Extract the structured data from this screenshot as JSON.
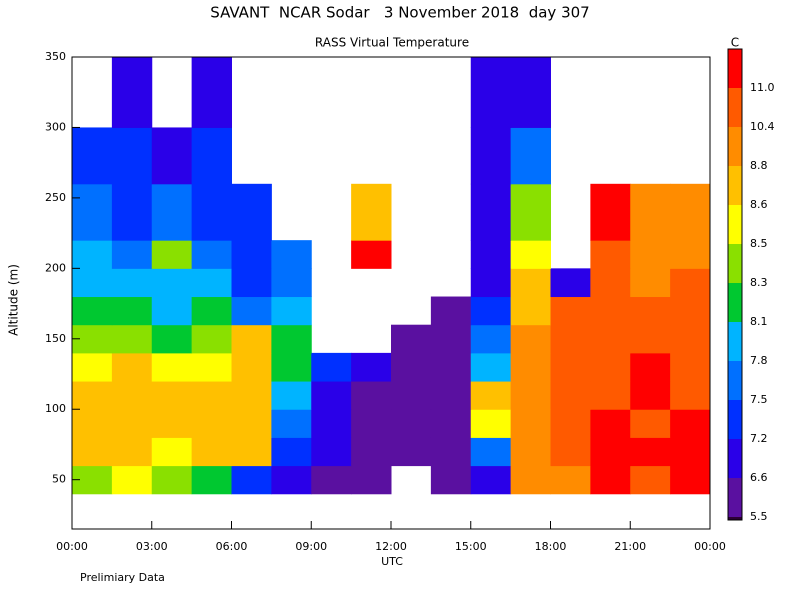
{
  "chart_data": {
    "type": "heatmap",
    "title": "SAVANT  NCAR Sodar   3 November 2018  day 307",
    "subtitle": "RASS Virtual Temperature",
    "xlabel": "UTC",
    "ylabel": "Altitude (m)",
    "note": "Prelimiary Data",
    "colorbar_label": "C",
    "xlim": [
      0,
      24
    ],
    "xticks": [
      {
        "value": 0,
        "label": "00:00"
      },
      {
        "value": 3,
        "label": "03:00"
      },
      {
        "value": 6,
        "label": "06:00"
      },
      {
        "value": 9,
        "label": "09:00"
      },
      {
        "value": 12,
        "label": "12:00"
      },
      {
        "value": 15,
        "label": "15:00"
      },
      {
        "value": 18,
        "label": "18:00"
      },
      {
        "value": 21,
        "label": "21:00"
      },
      {
        "value": 24,
        "label": "00:00"
      }
    ],
    "ylim": [
      15,
      350
    ],
    "yticks": [
      50,
      100,
      150,
      200,
      250,
      300,
      350
    ],
    "x_edges": [
      0,
      1.5,
      3,
      4.5,
      6,
      7.5,
      9,
      10.5,
      12,
      13.5,
      15,
      16.5,
      18,
      19.5,
      21,
      22.5,
      24
    ],
    "y_edges": [
      40,
      60,
      80,
      100,
      120,
      140,
      160,
      180,
      200,
      220,
      260,
      300,
      350
    ],
    "levels": [
      5.5,
      6.6,
      7.2,
      7.5,
      7.8,
      8.1,
      8.3,
      8.5,
      8.6,
      8.8,
      10.4,
      {
        "value": 11,
        "label": "11.0"
      }
    ],
    "colors": [
      "#2d0036",
      "#5a10a0",
      "#2a00e8",
      "#0030ff",
      "#0070ff",
      "#00b4ff",
      "#00c830",
      "#8ae000",
      "#ffff00",
      "#ffc000",
      "#ff8c00",
      "#ff5a00",
      "#ff0000"
    ],
    "values": [
      [
        8.3,
        8.5,
        8.3,
        8.1,
        7.2,
        6.6,
        6.0,
        6.0,
        null,
        6.0,
        7.0,
        8.9,
        9.0,
        11.2,
        10.8,
        11.2
      ],
      [
        8.6,
        8.7,
        8.5,
        8.6,
        8.6,
        7.3,
        6.8,
        6.0,
        6.0,
        6.0,
        7.5,
        8.9,
        10.5,
        11.2,
        11.2,
        11.3
      ],
      [
        8.7,
        8.7,
        8.6,
        8.6,
        8.7,
        7.6,
        6.9,
        6.2,
        6.0,
        6.0,
        8.5,
        8.9,
        10.5,
        11.2,
        10.8,
        11.2
      ],
      [
        8.6,
        8.7,
        8.6,
        8.6,
        8.7,
        7.9,
        7.0,
        6.3,
        6.0,
        6.0,
        8.6,
        9.0,
        10.5,
        10.6,
        11.2,
        10.8
      ],
      [
        8.5,
        8.6,
        8.5,
        8.5,
        8.6,
        8.2,
        7.3,
        7.0,
        6.2,
        6.0,
        7.8,
        8.9,
        10.5,
        10.6,
        11.2,
        10.7
      ],
      [
        8.3,
        8.4,
        8.2,
        8.3,
        8.6,
        8.1,
        null,
        null,
        6.3,
        6.0,
        7.5,
        8.9,
        10.5,
        10.6,
        10.7,
        10.5
      ],
      [
        8.1,
        8.2,
        8.0,
        8.1,
        7.6,
        7.8,
        null,
        null,
        null,
        6.2,
        7.2,
        8.7,
        10.5,
        10.5,
        10.6,
        10.5
      ],
      [
        7.9,
        7.8,
        7.8,
        7.8,
        7.3,
        7.6,
        null,
        null,
        null,
        null,
        7.0,
        8.6,
        6.6,
        10.5,
        9.0,
        10.4
      ],
      [
        7.8,
        7.7,
        8.3,
        7.6,
        7.2,
        7.5,
        null,
        11.2,
        null,
        null,
        6.8,
        8.5,
        null,
        10.4,
        8.9,
        8.9
      ],
      [
        7.6,
        7.4,
        7.7,
        7.4,
        7.2,
        null,
        null,
        8.7,
        null,
        null,
        6.6,
        8.3,
        null,
        11.2,
        8.9,
        8.9
      ],
      [
        7.3,
        7.2,
        6.9,
        7.3,
        null,
        null,
        null,
        null,
        null,
        null,
        6.8,
        7.5,
        null,
        null,
        null,
        null
      ],
      [
        null,
        6.9,
        null,
        7.0,
        null,
        null,
        null,
        null,
        null,
        null,
        6.8,
        7.0,
        null,
        null,
        null,
        null
      ]
    ]
  }
}
